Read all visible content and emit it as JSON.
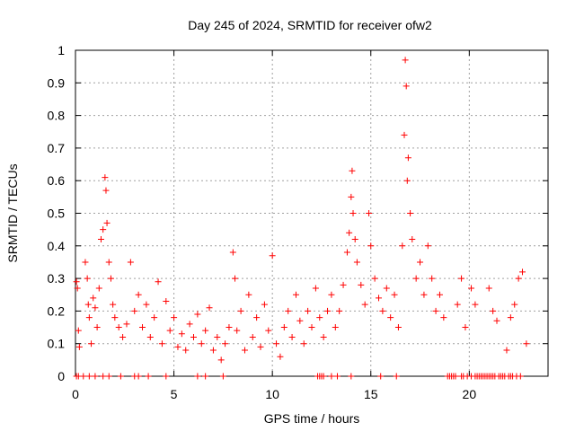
{
  "chart_data": {
    "type": "scatter",
    "title": "Day 245 of 2024, SRMTID for receiver ofw2",
    "xlabel": "GPS time / hours",
    "ylabel": "SRMTID / TECUs",
    "xlim": [
      0,
      24
    ],
    "ylim": [
      0,
      1
    ],
    "x_ticks": [
      0,
      5,
      10,
      15,
      20
    ],
    "x_tick_labels": [
      "0",
      "5",
      "10",
      "15",
      "20"
    ],
    "y_ticks": [
      0,
      0.1,
      0.2,
      0.3,
      0.4,
      0.5,
      0.6,
      0.7,
      0.8,
      0.9,
      1
    ],
    "y_tick_labels": [
      "0",
      "0.1",
      "0.2",
      "0.3",
      "0.4",
      "0.5",
      "0.6",
      "0.7",
      "0.8",
      "0.9",
      "1"
    ],
    "grid": true,
    "marker": "+",
    "marker_color": "#ff0000",
    "series": [
      {
        "name": "SRMTID",
        "points": [
          [
            0.05,
            0.29
          ],
          [
            0.1,
            0.27
          ],
          [
            0.15,
            0.14
          ],
          [
            0.2,
            0.09
          ],
          [
            0.5,
            0.35
          ],
          [
            0.6,
            0.3
          ],
          [
            0.65,
            0.22
          ],
          [
            0.7,
            0.18
          ],
          [
            0.8,
            0.1
          ],
          [
            0.9,
            0.24
          ],
          [
            1.0,
            0.21
          ],
          [
            1.1,
            0.15
          ],
          [
            1.2,
            0.27
          ],
          [
            1.3,
            0.42
          ],
          [
            1.4,
            0.45
          ],
          [
            1.5,
            0.61
          ],
          [
            1.55,
            0.57
          ],
          [
            1.6,
            0.47
          ],
          [
            1.7,
            0.35
          ],
          [
            1.8,
            0.3
          ],
          [
            1.9,
            0.22
          ],
          [
            2.0,
            0.18
          ],
          [
            2.2,
            0.15
          ],
          [
            2.4,
            0.12
          ],
          [
            2.6,
            0.16
          ],
          [
            2.8,
            0.35
          ],
          [
            3.0,
            0.2
          ],
          [
            3.2,
            0.25
          ],
          [
            3.4,
            0.15
          ],
          [
            3.6,
            0.22
          ],
          [
            3.8,
            0.12
          ],
          [
            4.0,
            0.18
          ],
          [
            4.2,
            0.29
          ],
          [
            4.4,
            0.1
          ],
          [
            4.6,
            0.23
          ],
          [
            4.8,
            0.14
          ],
          [
            5.0,
            0.18
          ],
          [
            5.2,
            0.09
          ],
          [
            5.4,
            0.13
          ],
          [
            5.6,
            0.08
          ],
          [
            5.8,
            0.16
          ],
          [
            6.0,
            0.12
          ],
          [
            6.2,
            0.19
          ],
          [
            6.4,
            0.1
          ],
          [
            6.6,
            0.14
          ],
          [
            6.8,
            0.21
          ],
          [
            7.0,
            0.08
          ],
          [
            7.2,
            0.12
          ],
          [
            7.4,
            0.05
          ],
          [
            7.6,
            0.1
          ],
          [
            7.8,
            0.15
          ],
          [
            8.0,
            0.38
          ],
          [
            8.1,
            0.3
          ],
          [
            8.2,
            0.14
          ],
          [
            8.4,
            0.2
          ],
          [
            8.6,
            0.08
          ],
          [
            8.8,
            0.25
          ],
          [
            9.0,
            0.12
          ],
          [
            9.2,
            0.18
          ],
          [
            9.4,
            0.09
          ],
          [
            9.6,
            0.22
          ],
          [
            9.8,
            0.14
          ],
          [
            10.0,
            0.37
          ],
          [
            10.2,
            0.1
          ],
          [
            10.4,
            0.06
          ],
          [
            10.6,
            0.15
          ],
          [
            10.8,
            0.2
          ],
          [
            11.0,
            0.12
          ],
          [
            11.2,
            0.25
          ],
          [
            11.4,
            0.17
          ],
          [
            11.6,
            0.1
          ],
          [
            11.8,
            0.2
          ],
          [
            12.0,
            0.15
          ],
          [
            12.2,
            0.27
          ],
          [
            12.4,
            0.18
          ],
          [
            12.6,
            0.12
          ],
          [
            12.8,
            0.2
          ],
          [
            13.0,
            0.25
          ],
          [
            13.2,
            0.15
          ],
          [
            13.4,
            0.2
          ],
          [
            13.6,
            0.28
          ],
          [
            13.8,
            0.38
          ],
          [
            13.9,
            0.44
          ],
          [
            14.0,
            0.55
          ],
          [
            14.05,
            0.63
          ],
          [
            14.1,
            0.5
          ],
          [
            14.2,
            0.42
          ],
          [
            14.3,
            0.35
          ],
          [
            14.5,
            0.28
          ],
          [
            14.7,
            0.22
          ],
          [
            14.9,
            0.5
          ],
          [
            15.0,
            0.4
          ],
          [
            15.2,
            0.3
          ],
          [
            15.4,
            0.24
          ],
          [
            15.6,
            0.2
          ],
          [
            15.8,
            0.27
          ],
          [
            16.0,
            0.18
          ],
          [
            16.2,
            0.25
          ],
          [
            16.4,
            0.15
          ],
          [
            16.6,
            0.4
          ],
          [
            16.7,
            0.74
          ],
          [
            16.75,
            0.97
          ],
          [
            16.8,
            0.89
          ],
          [
            16.85,
            0.6
          ],
          [
            16.9,
            0.67
          ],
          [
            17.0,
            0.5
          ],
          [
            17.1,
            0.42
          ],
          [
            17.3,
            0.3
          ],
          [
            17.5,
            0.35
          ],
          [
            17.7,
            0.25
          ],
          [
            17.9,
            0.4
          ],
          [
            18.1,
            0.3
          ],
          [
            18.3,
            0.2
          ],
          [
            18.5,
            0.25
          ],
          [
            18.7,
            0.18
          ],
          [
            19.4,
            0.22
          ],
          [
            19.6,
            0.3
          ],
          [
            19.8,
            0.15
          ],
          [
            20.1,
            0.27
          ],
          [
            20.3,
            0.22
          ],
          [
            21.0,
            0.27
          ],
          [
            21.2,
            0.2
          ],
          [
            21.4,
            0.17
          ],
          [
            21.9,
            0.08
          ],
          [
            22.1,
            0.18
          ],
          [
            22.3,
            0.22
          ],
          [
            22.5,
            0.3
          ],
          [
            22.7,
            0.32
          ],
          [
            22.9,
            0.1
          ]
        ],
        "zero_values_at": [
          0.05,
          0.15,
          0.4,
          0.7,
          1.0,
          1.4,
          1.7,
          2.3,
          3.0,
          3.2,
          3.7,
          4.6,
          6.2,
          6.6,
          7.5,
          12.3,
          12.4,
          12.5,
          12.6,
          13.0,
          13.3,
          14.0,
          15.5,
          16.3,
          18.9,
          19.0,
          19.1,
          19.2,
          19.3,
          19.6,
          19.7,
          19.9,
          20.1,
          20.3,
          20.4,
          20.5,
          20.6,
          20.7,
          20.8,
          20.9,
          21.0,
          21.1,
          21.2,
          21.3,
          21.5,
          21.6,
          21.7,
          21.8,
          22.0,
          22.1,
          22.2,
          22.4,
          22.6
        ]
      }
    ]
  }
}
